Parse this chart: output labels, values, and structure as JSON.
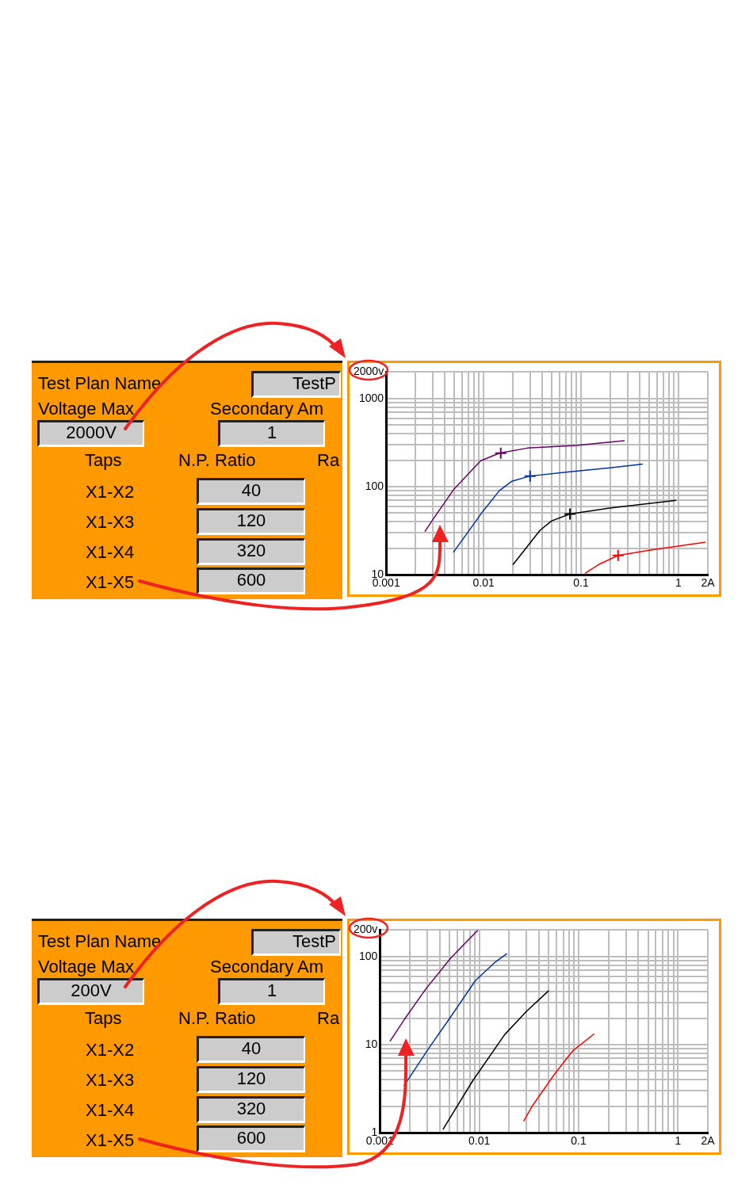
{
  "chart_data": [
    {
      "type": "other",
      "annotations": [
        "Test Plan Name",
        "TestP",
        "Voltage Max",
        "Secondary Am",
        "2000V",
        "1",
        "Taps",
        "N.P. Ratio",
        "Ra",
        "X1-X2",
        "40",
        "X1-X3",
        "120",
        "X1-X4",
        "320",
        "X1-X5",
        "600"
      ]
    },
    {
      "type": "line",
      "log": "xy",
      "grid": true,
      "legend": false,
      "marker": "none",
      "line_style": "solid",
      "xlim": [
        0.001,
        2
      ],
      "ylim": [
        10,
        2000
      ],
      "xticks": [
        0.001,
        {
          "value": 0.002,
          "label": null
        },
        {
          "value": 0.003,
          "label": null
        },
        {
          "value": 0.004,
          "label": null
        },
        {
          "value": 0.005,
          "label": null
        },
        {
          "value": 0.006,
          "label": null
        },
        {
          "value": 0.007,
          "label": null
        },
        {
          "value": 0.008,
          "label": null
        },
        {
          "value": 0.009,
          "label": null
        },
        0.01,
        {
          "value": 0.02,
          "label": null
        },
        {
          "value": 0.03,
          "label": null
        },
        {
          "value": 0.04,
          "label": null
        },
        {
          "value": 0.05,
          "label": null
        },
        {
          "value": 0.06,
          "label": null
        },
        {
          "value": 0.07,
          "label": null
        },
        {
          "value": 0.08,
          "label": null
        },
        {
          "value": 0.09,
          "label": null
        },
        0.1,
        {
          "value": 0.2,
          "label": null
        },
        {
          "value": 0.3,
          "label": null
        },
        {
          "value": 0.4,
          "label": null
        },
        {
          "value": 0.5,
          "label": null
        },
        {
          "value": 0.6,
          "label": null
        },
        {
          "value": 0.7,
          "label": null
        },
        {
          "value": 0.8,
          "label": null
        },
        {
          "value": 0.9,
          "label": null
        },
        1,
        {
          "value": 2,
          "label": "2A"
        }
      ],
      "yticks": [
        10,
        {
          "value": 20,
          "label": null
        },
        {
          "value": 30,
          "label": null
        },
        {
          "value": 40,
          "label": null
        },
        {
          "value": 50,
          "label": null
        },
        {
          "value": 60,
          "label": null
        },
        {
          "value": 70,
          "label": null
        },
        {
          "value": 80,
          "label": null
        },
        {
          "value": 90,
          "label": null
        },
        100,
        {
          "value": 200,
          "label": null
        },
        {
          "value": 300,
          "label": null
        },
        {
          "value": 400,
          "label": null
        },
        {
          "value": 500,
          "label": null
        },
        {
          "value": 600,
          "label": null
        },
        {
          "value": 700,
          "label": null
        },
        {
          "value": 800,
          "label": null
        },
        {
          "value": 900,
          "label": null
        },
        1000,
        {
          "value": 2000,
          "label": "2000v"
        }
      ],
      "series": [
        {
          "color": "#660066",
          "x": [
            0.0025,
            0.003,
            0.0049,
            0.0093,
            0.0145,
            0.028,
            0.09,
            0.28
          ],
          "values": [
            31,
            42,
            92,
            196,
            240,
            274,
            294,
            333
          ]
        },
        {
          "color": "#003399",
          "x": [
            0.0049,
            0.0099,
            0.0145,
            0.0194,
            0.03,
            0.073,
            0.19,
            0.43
          ],
          "values": [
            18,
            53,
            90,
            115,
            132,
            147,
            163,
            181
          ]
        },
        {
          "color": "#000000",
          "x": [
            0.02,
            0.038,
            0.05,
            0.077,
            0.19,
            0.95
          ],
          "values": [
            13,
            32,
            41,
            49,
            57,
            70
          ]
        },
        {
          "color": "#ff0000",
          "x": [
            0.11,
            0.15,
            0.24,
            0.5,
            1.9
          ],
          "values": [
            10.4,
            13,
            16.6,
            19,
            23.5
          ]
        },
        {
          "type": "scatter",
          "marker": "cross",
          "color": "#660066",
          "x": [
            0.015
          ],
          "values": [
            240
          ]
        },
        {
          "type": "scatter",
          "marker": "cross",
          "color": "#003399",
          "x": [
            0.03
          ],
          "values": [
            132
          ]
        },
        {
          "type": "scatter",
          "marker": "cross",
          "color": "#000000",
          "x": [
            0.077
          ],
          "values": [
            49
          ]
        },
        {
          "type": "scatter",
          "marker": "cross",
          "color": "#ff0000",
          "x": [
            0.24
          ],
          "values": [
            16.6
          ]
        }
      ]
    },
    {
      "type": "other",
      "annotations": [
        "Test Plan Name",
        "TestP",
        "Voltage Max",
        "Secondary Am",
        "200V",
        "1",
        "Taps",
        "N.P. Ratio",
        "Ra",
        "X1-X2",
        "40",
        "X1-X3",
        "120",
        "X1-X4",
        "320",
        "X1-X5",
        "600"
      ]
    },
    {
      "type": "line",
      "log": "xy",
      "grid": true,
      "legend": false,
      "marker": "none",
      "line_style": "solid",
      "xlim": [
        0.001,
        2
      ],
      "ylim": [
        1,
        200
      ],
      "xticks": [
        0.001,
        {
          "value": 0.002,
          "label": null
        },
        {
          "value": 0.003,
          "label": null
        },
        {
          "value": 0.004,
          "label": null
        },
        {
          "value": 0.005,
          "label": null
        },
        {
          "value": 0.006,
          "label": null
        },
        {
          "value": 0.007,
          "label": null
        },
        {
          "value": 0.008,
          "label": null
        },
        {
          "value": 0.009,
          "label": null
        },
        0.01,
        {
          "value": 0.02,
          "label": null
        },
        {
          "value": 0.03,
          "label": null
        },
        {
          "value": 0.04,
          "label": null
        },
        {
          "value": 0.05,
          "label": null
        },
        {
          "value": 0.06,
          "label": null
        },
        {
          "value": 0.07,
          "label": null
        },
        {
          "value": 0.08,
          "label": null
        },
        {
          "value": 0.09,
          "label": null
        },
        0.1,
        {
          "value": 0.2,
          "label": null
        },
        {
          "value": 0.3,
          "label": null
        },
        {
          "value": 0.4,
          "label": null
        },
        {
          "value": 0.5,
          "label": null
        },
        {
          "value": 0.6,
          "label": null
        },
        {
          "value": 0.7,
          "label": null
        },
        {
          "value": 0.8,
          "label": null
        },
        {
          "value": 0.9,
          "label": null
        },
        1,
        {
          "value": 2,
          "label": "2A"
        }
      ],
      "yticks": [
        1,
        {
          "value": 2,
          "label": null
        },
        {
          "value": 3,
          "label": null
        },
        {
          "value": 4,
          "label": null
        },
        {
          "value": 5,
          "label": null
        },
        {
          "value": 6,
          "label": null
        },
        {
          "value": 7,
          "label": null
        },
        {
          "value": 8,
          "label": null
        },
        {
          "value": 9,
          "label": null
        },
        10,
        {
          "value": 20,
          "label": null
        },
        {
          "value": 30,
          "label": null
        },
        {
          "value": 40,
          "label": null
        },
        {
          "value": 50,
          "label": null
        },
        {
          "value": 60,
          "label": null
        },
        {
          "value": 70,
          "label": null
        },
        {
          "value": 80,
          "label": null
        },
        {
          "value": 90,
          "label": null
        },
        100,
        {
          "value": 200,
          "label": "200v"
        }
      ],
      "series": [
        {
          "color": "#660066",
          "x": [
            0.00126,
            0.00177,
            0.0029,
            0.0052,
            0.0097
          ],
          "values": [
            10.9,
            19.5,
            43,
            97,
            200
          ]
        },
        {
          "color": "#003399",
          "x": [
            0.00174,
            0.0031,
            0.0052,
            0.0091,
            0.0142,
            0.019
          ],
          "values": [
            3.4,
            9.1,
            21,
            53,
            85,
            108
          ]
        },
        {
          "color": "#000000",
          "x": [
            0.0043,
            0.0086,
            0.018,
            0.03,
            0.05
          ],
          "values": [
            1.09,
            3.9,
            13,
            24,
            41
          ]
        },
        {
          "color": "#ff0000",
          "x": [
            0.028,
            0.034,
            0.057,
            0.088,
            0.144
          ],
          "values": [
            1.35,
            2,
            4.6,
            8.6,
            13.3
          ]
        }
      ]
    }
  ]
}
